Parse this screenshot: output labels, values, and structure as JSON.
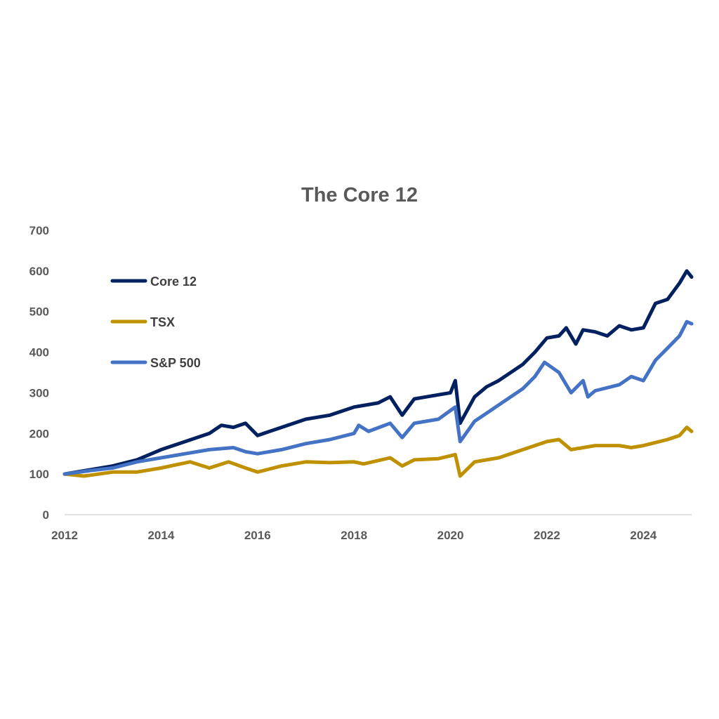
{
  "chart_data": {
    "type": "line",
    "title": "The Core 12",
    "xlabel": "",
    "ylabel": "",
    "xlim": [
      2012,
      2025
    ],
    "ylim": [
      0,
      700
    ],
    "x_ticks": [
      "2012",
      "2014",
      "2016",
      "2018",
      "2020",
      "2022",
      "2024"
    ],
    "y_ticks": [
      "0",
      "100",
      "200",
      "300",
      "400",
      "500",
      "600",
      "700"
    ],
    "grid": false,
    "legend_position": "top-left",
    "series": [
      {
        "name": "Core 12",
        "color": "#002060",
        "x": [
          2012,
          2012.5,
          2013,
          2013.5,
          2014,
          2014.5,
          2015,
          2015.25,
          2015.5,
          2015.75,
          2016,
          2016.5,
          2017,
          2017.5,
          2018,
          2018.5,
          2018.75,
          2019,
          2019.25,
          2019.5,
          2020,
          2020.1,
          2020.2,
          2020.5,
          2020.75,
          2021,
          2021.5,
          2021.75,
          2022,
          2022.25,
          2022.4,
          2022.6,
          2022.75,
          2023,
          2023.25,
          2023.5,
          2023.75,
          2024,
          2024.25,
          2024.5,
          2024.75,
          2024.9,
          2025
        ],
        "y": [
          100,
          110,
          120,
          135,
          160,
          180,
          200,
          220,
          215,
          225,
          195,
          215,
          235,
          245,
          265,
          275,
          290,
          245,
          285,
          290,
          300,
          330,
          225,
          290,
          315,
          330,
          370,
          400,
          435,
          440,
          460,
          420,
          455,
          450,
          440,
          465,
          455,
          460,
          520,
          530,
          570,
          600,
          585
        ]
      },
      {
        "name": "TSX",
        "color": "#BF9000",
        "x": [
          2012,
          2012.4,
          2013,
          2013.5,
          2014,
          2014.6,
          2015,
          2015.4,
          2015.75,
          2016,
          2016.5,
          2017,
          2017.5,
          2018,
          2018.2,
          2018.75,
          2019,
          2019.25,
          2019.75,
          2020.1,
          2020.2,
          2020.5,
          2020.75,
          2021,
          2021.5,
          2021.75,
          2022,
          2022.25,
          2022.5,
          2022.75,
          2023,
          2023.5,
          2023.75,
          2024,
          2024.5,
          2024.75,
          2024.9,
          2025
        ],
        "y": [
          100,
          95,
          105,
          105,
          115,
          130,
          115,
          130,
          115,
          105,
          120,
          130,
          128,
          130,
          125,
          140,
          120,
          135,
          138,
          148,
          95,
          130,
          135,
          140,
          160,
          170,
          180,
          185,
          160,
          165,
          170,
          170,
          165,
          170,
          185,
          195,
          215,
          205
        ]
      },
      {
        "name": "S&P 500",
        "color": "#4472C4",
        "x": [
          2012,
          2012.5,
          2013,
          2013.5,
          2014,
          2014.5,
          2015,
          2015.5,
          2015.75,
          2016,
          2016.5,
          2017,
          2017.5,
          2018,
          2018.1,
          2018.3,
          2018.75,
          2019,
          2019.25,
          2019.75,
          2020.1,
          2020.2,
          2020.5,
          2020.75,
          2021,
          2021.5,
          2021.75,
          2021.95,
          2022.25,
          2022.5,
          2022.75,
          2022.85,
          2023,
          2023.5,
          2023.75,
          2024,
          2024.25,
          2024.5,
          2024.75,
          2024.9,
          2025
        ],
        "y": [
          100,
          108,
          115,
          130,
          140,
          150,
          160,
          165,
          155,
          150,
          160,
          175,
          185,
          200,
          220,
          205,
          225,
          190,
          225,
          235,
          265,
          180,
          230,
          250,
          270,
          310,
          340,
          375,
          350,
          300,
          330,
          290,
          305,
          320,
          340,
          330,
          380,
          410,
          440,
          475,
          470
        ]
      }
    ]
  }
}
